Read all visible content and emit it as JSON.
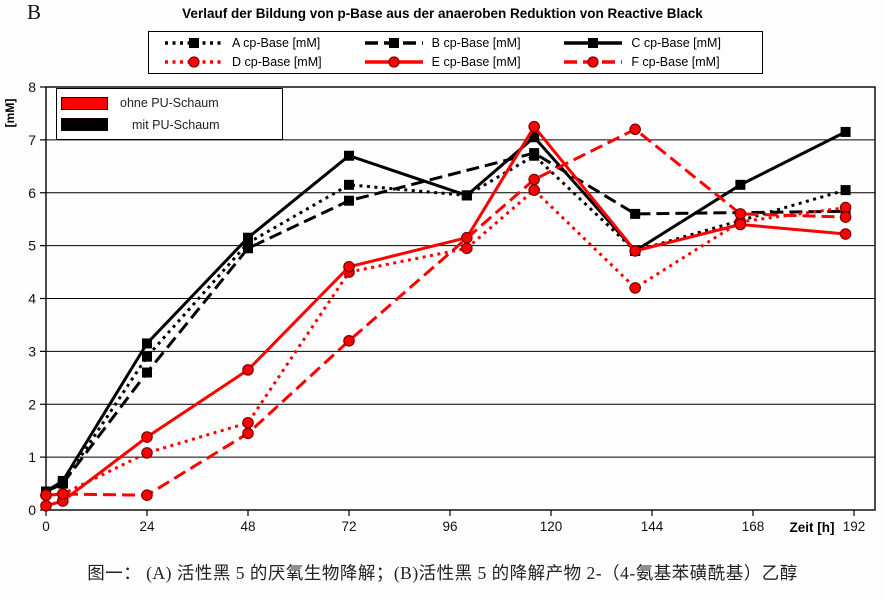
{
  "panel_label": "B",
  "caption": "图一： (A) 活性黑 5 的厌氧生物降解；(B)活性黑 5 的降解产物 2-（4-氨基苯磺酰基）乙醇",
  "inner_legend": {
    "items": [
      {
        "label": "ohne PU-Schaum",
        "color": "#ff0000"
      },
      {
        "label": "mit PU-Schaum",
        "color": "#000000"
      }
    ]
  },
  "chart_data": {
    "type": "line",
    "title": "Verlauf der Bildung von p-Base aus der anaeroben Reduktion von Reactive Black",
    "xlabel": "Zeit [h]",
    "ylabel": "[mM]",
    "xlim": [
      0,
      196
    ],
    "ylim": [
      0,
      8
    ],
    "xticks": [
      0,
      24,
      48,
      72,
      96,
      120,
      144,
      168,
      192
    ],
    "yticks": [
      0,
      1,
      2,
      3,
      4,
      5,
      6,
      7,
      8
    ],
    "grid": "horizontal",
    "legend_position": "top",
    "colors": {
      "ohne_pu_schaum": "#ff0000",
      "mit_pu_schaum": "#000000"
    },
    "series": [
      {
        "name": "A cp-Base [mM]",
        "color": "#000000",
        "line_style": "dotted",
        "marker": "square",
        "x": [
          0,
          4,
          24,
          48,
          72,
          100,
          116,
          140,
          190
        ],
        "y": [
          0.35,
          0.5,
          2.9,
          5.05,
          6.15,
          5.95,
          6.7,
          4.9,
          6.05
        ]
      },
      {
        "name": "B cp-Base [mM]",
        "color": "#000000",
        "line_style": "dashed",
        "marker": "square",
        "x": [
          0,
          4,
          24,
          48,
          72,
          116,
          140,
          190
        ],
        "y": [
          0.35,
          0.5,
          2.6,
          4.95,
          5.85,
          6.75,
          5.6,
          5.65
        ]
      },
      {
        "name": "C cp-Base [mM]",
        "color": "#000000",
        "line_style": "solid",
        "marker": "square",
        "x": [
          0,
          4,
          24,
          48,
          72,
          100,
          116,
          140,
          165,
          190
        ],
        "y": [
          0.35,
          0.55,
          3.15,
          5.15,
          6.7,
          5.95,
          7.05,
          4.9,
          6.15,
          7.15
        ]
      },
      {
        "name": "D cp-Base [mM]",
        "color": "#ff0000",
        "line_style": "dotted",
        "marker": "circle",
        "x": [
          0,
          4,
          24,
          48,
          72,
          100,
          116,
          140,
          165,
          190
        ],
        "y": [
          0.28,
          0.3,
          1.08,
          1.65,
          4.5,
          4.95,
          6.05,
          4.2,
          5.45,
          5.72
        ]
      },
      {
        "name": "E cp-Base [mM]",
        "color": "#ff0000",
        "line_style": "solid",
        "marker": "circle",
        "x": [
          0,
          4,
          24,
          48,
          72,
          100,
          116,
          140,
          165,
          190
        ],
        "y": [
          0.08,
          0.17,
          1.38,
          2.65,
          4.6,
          5.15,
          7.25,
          4.9,
          5.4,
          5.22
        ]
      },
      {
        "name": "F cp-Base [mM]",
        "color": "#ff0000",
        "line_style": "dashed",
        "marker": "circle",
        "x": [
          0,
          4,
          24,
          48,
          72,
          116,
          140,
          165,
          190
        ],
        "y": [
          0.28,
          0.3,
          0.28,
          1.45,
          3.2,
          6.25,
          7.2,
          5.6,
          5.54
        ]
      }
    ]
  }
}
